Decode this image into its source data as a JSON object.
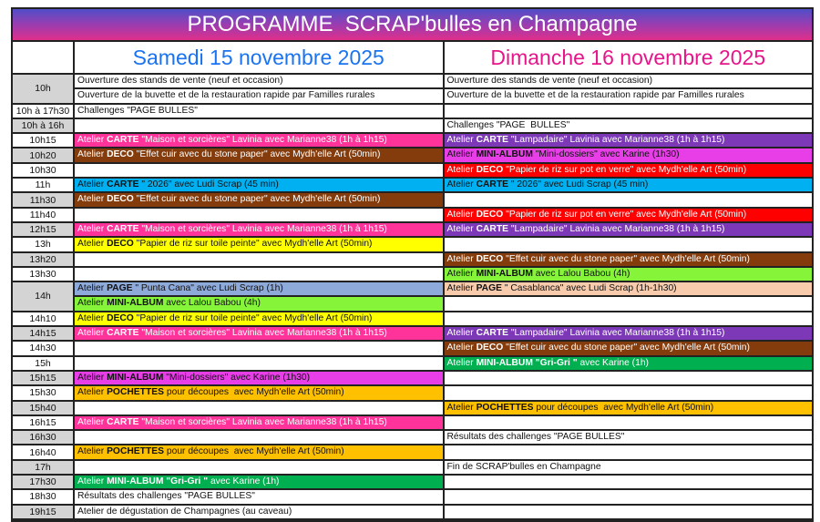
{
  "title": "PROGRAMME  SCRAP'bulles en Champagne",
  "days": {
    "saturday": "Samedi 15 novembre 2025",
    "sunday": "Dimanche 16 novembre 2025"
  },
  "colors": {
    "pink": "#ff3399",
    "brown": "#843c0c",
    "purple": "#7d38b8",
    "magenta": "#e83ee8",
    "red": "#ff0000",
    "blue": "#00b0f0",
    "yellow": "#ffff00",
    "orange": "#ffc000",
    "lime": "#86f53a",
    "green": "#00b050",
    "lightblue": "#8eaadb",
    "peach": "#f8cbad"
  },
  "rows": [
    {
      "time": "10h",
      "gray": true,
      "slots": [
        {
          "sat": {
            "text": "Ouverture des stands de vente (neuf et occasion)"
          },
          "sun": {
            "text": "Ouverture des stands de vente (neuf et occasion)"
          }
        },
        {
          "sat": {
            "text": "Ouverture de la buvette et de la restauration rapide par Familles rurales"
          },
          "sun": {
            "text": "Ouverture de la buvette et de la restauration rapide par Familles rurales"
          }
        }
      ]
    },
    {
      "time": "10h à 17h30",
      "gray": false,
      "slots": [
        {
          "sat": {
            "text": "Challenges \"PAGE BULLES\""
          },
          "sun": null
        }
      ]
    },
    {
      "time": "10h à 16h",
      "gray": true,
      "slots": [
        {
          "sat": null,
          "sun": {
            "text": "Challenges \"PAGE  BULLES\""
          }
        }
      ]
    },
    {
      "time": "10h15",
      "gray": false,
      "slots": [
        {
          "sat": {
            "pre": "Atelier ",
            "bold": "CARTE",
            "text": " \"Maison et sorcières\" Lavinia avec Marianne38 (1h à 1h15)",
            "color": "pink",
            "light": true
          },
          "sun": {
            "pre": "Atelier ",
            "bold": "CARTE",
            "text": " \"Lampadaire\" Lavinia avec Marianne38 (1h à 1h15)",
            "color": "purple",
            "light": true
          }
        }
      ]
    },
    {
      "time": "10h20",
      "gray": true,
      "slots": [
        {
          "sat": {
            "pre": "Atelier ",
            "bold": "DECO",
            "text": " \"Effet cuir avec du stone paper\" avec Mydh'elle Art (50min)",
            "color": "brown",
            "light": true
          },
          "sun": {
            "pre": "Atelier ",
            "bold": "MINI-ALBUM",
            "text": " \"Mini-dossiers\" avec Karine (1h30)",
            "color": "magenta"
          }
        }
      ]
    },
    {
      "time": "10h30",
      "gray": false,
      "slots": [
        {
          "sat": null,
          "sun": {
            "pre": "Atelier ",
            "bold": "DECO",
            "text": " \"Papier de riz sur pot en verre\" avec Mydh'elle Art (50min)",
            "color": "red",
            "light": true
          }
        }
      ]
    },
    {
      "time": "11h",
      "gray": false,
      "slots": [
        {
          "sat": {
            "pre": "Atelier ",
            "bold": "CARTE",
            "text": " \" 2026\" avec Ludi Scrap (45 min)",
            "color": "blue"
          },
          "sun": {
            "pre": "Atelier ",
            "bold": "CARTE",
            "text": " \" 2026\" avec Ludi Scrap (45 min)",
            "color": "blue"
          }
        }
      ]
    },
    {
      "time": "11h30",
      "gray": true,
      "slots": [
        {
          "sat": {
            "pre": "Atelier ",
            "bold": "DECO",
            "text": " \"Effet cuir avec du stone paper\" avec Mydh'elle Art (50min)",
            "color": "brown",
            "light": true
          },
          "sun": null
        }
      ]
    },
    {
      "time": "11h40",
      "gray": false,
      "slots": [
        {
          "sat": null,
          "sun": {
            "pre": "Atelier ",
            "bold": "DECO",
            "text": " \"Papier de riz sur pot en verre\" avec Mydh'elle Art (50min)",
            "color": "red",
            "light": true
          }
        }
      ]
    },
    {
      "time": "12h15",
      "gray": true,
      "slots": [
        {
          "sat": {
            "pre": "Atelier ",
            "bold": "CARTE",
            "text": " \"Maison et sorcières\" Lavinia avec Marianne38 (1h à 1h15)",
            "color": "pink",
            "light": true
          },
          "sun": {
            "pre": "Atelier ",
            "bold": "CARTE",
            "text": " \"Lampadaire\" Lavinia avec Marianne38 (1h à 1h15)",
            "color": "purple",
            "light": true
          }
        }
      ]
    },
    {
      "time": "13h",
      "gray": false,
      "slots": [
        {
          "sat": {
            "pre": "Atelier ",
            "bold": "DECO",
            "text": " \"Papier de riz sur toile peinte\" avec Mydh'elle Art (50min)",
            "color": "yellow"
          },
          "sun": null
        }
      ]
    },
    {
      "time": "13h20",
      "gray": true,
      "slots": [
        {
          "sat": null,
          "sun": {
            "pre": "Atelier ",
            "bold": "DECO",
            "text": " \"Effet cuir avec du stone paper\" avec Mydh'elle Art (50min)",
            "color": "brown",
            "light": true
          }
        }
      ]
    },
    {
      "time": "13h30",
      "gray": false,
      "slots": [
        {
          "sat": null,
          "sun": {
            "pre": "Atelier ",
            "bold": "MINI-ALBUM",
            "text": " avec Lalou Babou (4h)",
            "color": "lime"
          }
        }
      ]
    },
    {
      "time": "14h",
      "gray": true,
      "slots": [
        {
          "sat": {
            "pre": "Atelier ",
            "bold": "PAGE",
            "text": " \" Punta Cana\" avec Ludi Scrap (1h)",
            "color": "lightblue"
          },
          "sun": {
            "pre": "Atelier ",
            "bold": "PAGE",
            "text": " \" Casablanca\" avec Ludi Scrap (1h-1h30)",
            "color": "peach"
          }
        },
        {
          "sat": {
            "pre": "Atelier ",
            "bold": "MINI-ALBUM",
            "text": " avec Lalou Babou (4h)",
            "color": "lime"
          },
          "sun": null
        }
      ]
    },
    {
      "time": "14h10",
      "gray": false,
      "slots": [
        {
          "sat": {
            "pre": "Atelier ",
            "bold": "DECO",
            "text": " \"Papier de riz sur toile peinte\" avec Mydh'elle Art (50min)",
            "color": "yellow"
          },
          "sun": null
        }
      ]
    },
    {
      "time": "14h15",
      "gray": true,
      "slots": [
        {
          "sat": {
            "pre": "Atelier ",
            "bold": "CARTE",
            "text": " \"Maison et sorcières\" Lavinia avec Marianne38 (1h à 1h15)",
            "color": "pink",
            "light": true
          },
          "sun": {
            "pre": "Atelier ",
            "bold": "CARTE",
            "text": " \"Lampadaire\" Lavinia avec Marianne38 (1h à 1h15)",
            "color": "purple",
            "light": true
          }
        }
      ]
    },
    {
      "time": "14h30",
      "gray": false,
      "slots": [
        {
          "sat": null,
          "sun": {
            "pre": "Atelier ",
            "bold": "DECO",
            "text": " \"Effet cuir avec du stone paper\" avec Mydh'elle Art (50min)",
            "color": "brown",
            "light": true
          }
        }
      ]
    },
    {
      "time": "15h",
      "gray": false,
      "slots": [
        {
          "sat": null,
          "sun": {
            "pre": "Atelier ",
            "bold": "MINI-ALBUM \"Gri-Gri \"",
            "text": " avec Karine (1h)",
            "color": "green",
            "light": true
          }
        }
      ]
    },
    {
      "time": "15h15",
      "gray": true,
      "slots": [
        {
          "sat": {
            "pre": "Atelier ",
            "bold": "MINI-ALBUM",
            "text": " \"Mini-dossiers\" avec Karine (1h30)",
            "color": "magenta"
          },
          "sun": null
        }
      ]
    },
    {
      "time": "15h30",
      "gray": false,
      "slots": [
        {
          "sat": {
            "pre": "Atelier ",
            "bold": "POCHETTES",
            "text": " pour découpes  avec Mydh'elle Art (50min)",
            "color": "orange"
          },
          "sun": null
        }
      ]
    },
    {
      "time": "15h40",
      "gray": true,
      "slots": [
        {
          "sat": null,
          "sun": {
            "pre": "Atelier ",
            "bold": "POCHETTES",
            "text": " pour découpes  avec Mydh'elle Art (50min)",
            "color": "orange"
          }
        }
      ]
    },
    {
      "time": "16h15",
      "gray": false,
      "slots": [
        {
          "sat": {
            "pre": "Atelier ",
            "bold": "CARTE",
            "text": " \"Maison et sorcières\" Lavinia avec Marianne38 (1h à 1h15)",
            "color": "pink",
            "light": true
          },
          "sun": null
        }
      ]
    },
    {
      "time": "16h30",
      "gray": true,
      "slots": [
        {
          "sat": null,
          "sun": {
            "text": "Résultats des challenges \"PAGE BULLES\""
          }
        }
      ]
    },
    {
      "time": "16h40",
      "gray": false,
      "slots": [
        {
          "sat": {
            "pre": "Atelier ",
            "bold": "POCHETTES",
            "text": " pour découpes  avec Mydh'elle Art (50min)",
            "color": "orange"
          },
          "sun": null
        }
      ]
    },
    {
      "time": "17h",
      "gray": true,
      "slots": [
        {
          "sat": null,
          "sun": {
            "text": "Fin de SCRAP'bulles en Champagne"
          }
        }
      ]
    },
    {
      "time": "17h30",
      "gray": true,
      "slots": [
        {
          "sat": {
            "pre": "Atelier ",
            "bold": "MINI-ALBUM \"Gri-Gri \"",
            "text": " avec Karine (1h)",
            "color": "green",
            "light": true
          },
          "sun": null
        }
      ]
    },
    {
      "time": "18h30",
      "gray": false,
      "slots": [
        {
          "sat": {
            "text": "Résultats des challenges \"PAGE BULLES\""
          },
          "sun": null
        }
      ]
    },
    {
      "time": "19h15",
      "gray": true,
      "slots": [
        {
          "sat": {
            "text": "Atelier de dégustation de Champagnes (au caveau)"
          },
          "sun": null
        }
      ]
    }
  ]
}
